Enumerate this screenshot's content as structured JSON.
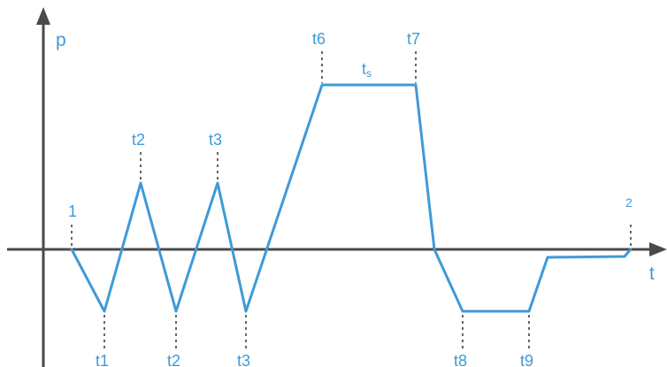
{
  "colors": {
    "profile": "#3f9ad8",
    "axis": "#4a4a4a",
    "guide": "#666666",
    "label": "#3f9ad8"
  },
  "axes": {
    "y_label": "p",
    "x_label": "t"
  },
  "labels": {
    "start": "1",
    "end": "2",
    "t1": "t1",
    "t2_top": "t2",
    "t2_bottom": "t2",
    "t3_top": "t3",
    "t3_bottom": "t3",
    "t6": "t6",
    "t7": "t7",
    "t8": "t8",
    "t9": "t9",
    "ts_main": "t",
    "ts_sub": "s"
  }
}
